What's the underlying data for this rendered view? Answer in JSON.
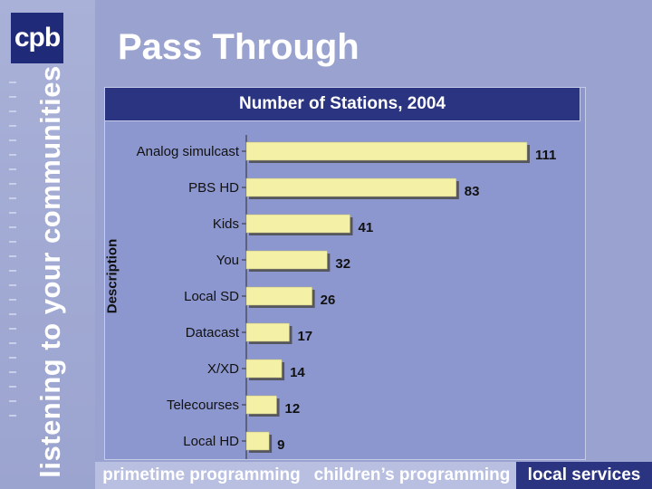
{
  "logo": {
    "text": "cpb"
  },
  "tagline": "listening to your communities",
  "slide_title": "Pass Through",
  "chart_data": {
    "type": "bar",
    "orientation": "horizontal",
    "title": "Number of Stations, 2004",
    "ylabel": "Description",
    "xlabel": "",
    "categories": [
      "Analog simulcast",
      "PBS HD",
      "Kids",
      "You",
      "Local SD",
      "Datacast",
      "X/XD",
      "Telecourses",
      "Local HD"
    ],
    "values": [
      111,
      83,
      41,
      32,
      26,
      17,
      14,
      12,
      9
    ],
    "xlim": [
      0,
      111
    ],
    "grid": false,
    "legend": "none",
    "bar_color": "#f4f1a6",
    "bar_shadow": "#55565e"
  },
  "bottom_nav": {
    "items": [
      {
        "label": "primetime programming"
      },
      {
        "label": "children’s programming"
      },
      {
        "label": "local services"
      }
    ],
    "active_index": 2
  },
  "colors": {
    "background": "#9aa3cf",
    "navy": "#2a3480",
    "bar": "#f4f1a6"
  }
}
